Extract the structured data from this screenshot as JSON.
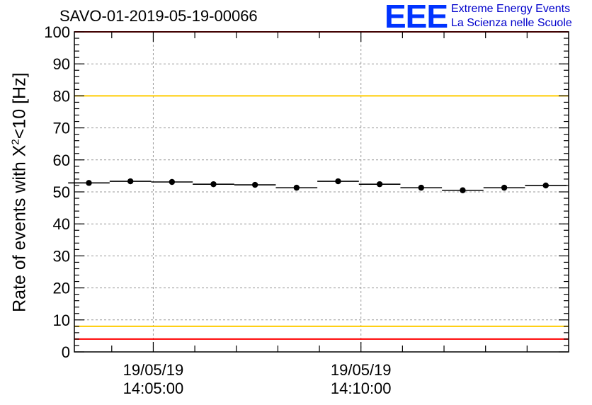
{
  "chart_data": {
    "type": "scatter",
    "title": "SAVO-01-2019-05-19-00066",
    "logo": {
      "mark": "EEE",
      "line1": "Extreme Energy Events",
      "line2": "La Scienza nelle Scuole"
    },
    "ylabel_prefix": "Rate of events with X",
    "ylabel_sup": "2",
    "ylabel_suffix": "<10 [Hz]",
    "ylim": [
      0,
      100
    ],
    "y_ticks": [
      "0",
      "10",
      "20",
      "30",
      "40",
      "50",
      "60",
      "70",
      "80",
      "90",
      "100"
    ],
    "xlim_minutes": [
      0,
      11.9
    ],
    "x_tick_labels": [
      {
        "t": 1.9,
        "date": "19/05/19",
        "time": "14:05:00"
      },
      {
        "t": 6.9,
        "date": "19/05/19",
        "time": "14:10:00"
      }
    ],
    "bin_width_minutes": 1.0,
    "points_x": [
      0.35,
      1.35,
      2.35,
      3.35,
      4.35,
      5.35,
      6.35,
      7.35,
      8.35,
      9.35,
      10.35,
      11.35
    ],
    "points_y": [
      52.8,
      53.3,
      53.1,
      52.4,
      52.2,
      51.3,
      53.3,
      52.4,
      51.3,
      50.5,
      51.3,
      52.0
    ],
    "reference_lines": [
      {
        "y": 100,
        "color": "#ff0000"
      },
      {
        "y": 80,
        "color": "#ffcc00"
      },
      {
        "y": 8,
        "color": "#ffcc00"
      },
      {
        "y": 4,
        "color": "#ff0000"
      }
    ],
    "grid": true
  }
}
